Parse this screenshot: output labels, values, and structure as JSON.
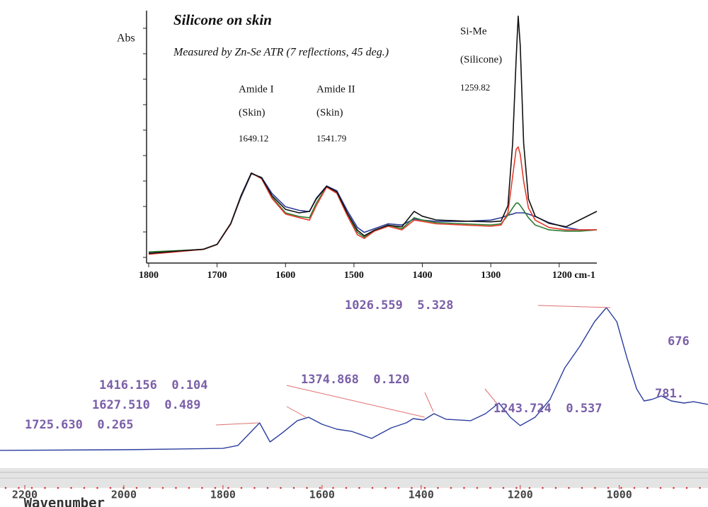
{
  "chart_data": [
    {
      "type": "line",
      "title": "Silicone on skin",
      "subtitle": "Measured by Zn-Se ATR (7 reflections, 45 deg.)",
      "ylabel": "Abs",
      "annotations": [
        "Amide I",
        "(Skin)",
        "1649.12",
        "Amide II",
        "(Skin)",
        "1541.79",
        "Si-Me",
        "(Silicone)",
        "1259.82"
      ],
      "x": [
        1800,
        1760,
        1720,
        1700,
        1680,
        1665,
        1650,
        1635,
        1620,
        1600,
        1580,
        1565,
        1555,
        1540,
        1525,
        1510,
        1495,
        1485,
        1470,
        1450,
        1430,
        1412,
        1400,
        1380,
        1340,
        1300,
        1285,
        1275,
        1268,
        1263,
        1260,
        1257,
        1252,
        1245,
        1235,
        1215,
        1190,
        1170,
        1145
      ],
      "xlim": [
        1800,
        1145
      ],
      "xticks": [
        1800,
        1700,
        1600,
        1500,
        1400,
        1300,
        {
          "value": 1200,
          "label": "1200 cm-1"
        }
      ],
      "ylim": [
        0,
        102
      ],
      "series": [
        {
          "color": "#2b3a9a",
          "values": [
            3.5,
            4.3,
            5,
            7,
            15.5,
            26.5,
            36,
            34.5,
            28,
            22.5,
            21,
            20.5,
            26,
            31,
            29,
            21,
            14,
            12,
            13.5,
            15.5,
            15,
            17.5,
            17,
            16.5,
            16.5,
            17,
            18,
            19,
            19.5,
            20,
            20,
            20,
            20,
            19.5,
            18.5,
            16,
            14,
            13,
            13
          ]
        },
        {
          "color": "#2e7d32",
          "values": [
            4,
            4.5,
            5,
            7,
            15.5,
            27,
            36.3,
            34,
            26.5,
            20,
            18.5,
            18,
            24,
            30.7,
            28.3,
            19.5,
            12,
            10,
            12.7,
            15,
            13.5,
            18,
            17,
            16,
            15.5,
            15,
            15.5,
            19,
            22,
            24,
            24,
            23,
            21,
            18,
            15,
            13,
            12.5,
            12.5,
            13
          ]
        },
        {
          "color": "#e53b2c",
          "values": [
            3,
            4,
            5,
            7,
            15.5,
            27,
            36.3,
            34,
            26,
            19.5,
            18,
            17,
            23,
            30.5,
            28,
            19,
            11,
            9.5,
            12.5,
            14.5,
            13,
            17,
            16.5,
            15.5,
            15,
            14.5,
            15,
            20,
            35,
            46,
            47,
            44,
            33,
            22,
            17,
            14,
            13,
            13,
            13
          ]
        },
        {
          "color": "#111111",
          "values": [
            3.4,
            4.3,
            5.1,
            7.1,
            15.7,
            27.1,
            36.3,
            34.3,
            27.1,
            21.4,
            20,
            20.6,
            25.7,
            30.9,
            28.6,
            20,
            12.9,
            10.6,
            12.9,
            14.9,
            14.3,
            20.6,
            18.6,
            17.1,
            16.6,
            16.3,
            16.6,
            22.9,
            48.6,
            82.9,
            100.6,
            88.6,
            48.6,
            25.7,
            18.6,
            15.7,
            14.3,
            17.1,
            20.6
          ]
        }
      ]
    },
    {
      "type": "line",
      "xlabel": "Wavenumber",
      "annotations": [
        "1026.559  5.328",
        "676",
        "1416.156  0.104",
        "1374.868  0.120",
        "781.",
        "1243.724  0.537",
        "1627.510  0.489",
        "1725.630  0.265"
      ],
      "x": [
        2250,
        2000,
        1800,
        1770,
        1726,
        1705,
        1680,
        1650,
        1627,
        1600,
        1570,
        1540,
        1500,
        1460,
        1430,
        1416,
        1395,
        1374,
        1350,
        1300,
        1270,
        1243,
        1220,
        1200,
        1170,
        1140,
        1110,
        1080,
        1050,
        1026,
        1005,
        985,
        965,
        950,
        935,
        915,
        895,
        870,
        850,
        821
      ],
      "xlim": [
        2250,
        821
      ],
      "xticks": [
        2200,
        2000,
        1800,
        1600,
        1400,
        1200,
        1000
      ],
      "ylim": [
        0,
        100
      ],
      "series": [
        {
          "color": "#2c3e9e",
          "values": [
            1.4,
            1.8,
            2.7,
            4.5,
            19.1,
            6.8,
            12.7,
            20.5,
            22.7,
            18.2,
            15,
            13.6,
            9.1,
            15.9,
            19.1,
            21.8,
            20.9,
            25,
            21.4,
            20.5,
            25,
            31.8,
            22.7,
            17.3,
            22.7,
            34.1,
            54.5,
            68.2,
            84.1,
            93.2,
            84.1,
            61.4,
            40.9,
            33.2,
            34.1,
            36.4,
            33.2,
            31.8,
            32.7,
            30.9
          ]
        }
      ]
    }
  ]
}
